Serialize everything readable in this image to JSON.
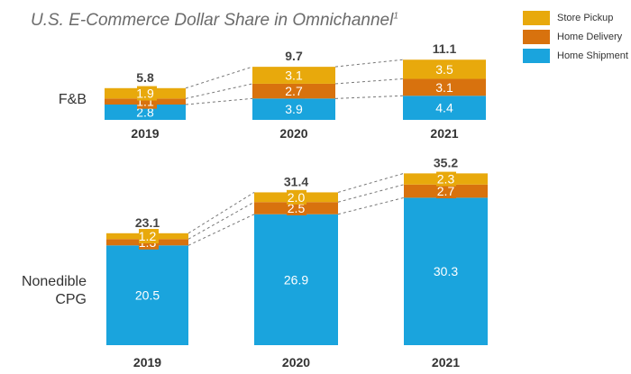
{
  "title": "U.S. E-Commerce Dollar Share in Omnichannel",
  "title_footnote": "1",
  "colors": {
    "store_pickup": "#e8a90c",
    "home_delivery": "#d8720e",
    "home_shipment": "#1aa4dd",
    "connector": "#777777",
    "text": "#333333"
  },
  "chart_data": [
    {
      "type": "bar",
      "stacked": true,
      "row_label": "F&B",
      "categories": [
        "2019",
        "2020",
        "2021"
      ],
      "series": [
        {
          "name": "Home Shipment",
          "values": [
            2.8,
            3.9,
            4.4
          ]
        },
        {
          "name": "Home Delivery",
          "values": [
            1.1,
            2.7,
            3.1
          ]
        },
        {
          "name": "Store Pickup",
          "values": [
            1.9,
            3.1,
            3.5
          ]
        }
      ],
      "totals": [
        "5.8",
        "9.7",
        "11.1"
      ],
      "legend": [
        "Store Pickup",
        "Home Delivery",
        "Home Shipment"
      ],
      "legend_position": "top-right"
    },
    {
      "type": "bar",
      "stacked": true,
      "row_label_lines": [
        "Nonedible",
        "CPG"
      ],
      "categories": [
        "2019",
        "2020",
        "2021"
      ],
      "series": [
        {
          "name": "Home Shipment",
          "values": [
            20.5,
            26.9,
            30.3
          ]
        },
        {
          "name": "Home Delivery",
          "values": [
            1.3,
            2.5,
            2.7
          ]
        },
        {
          "name": "Store Pickup",
          "values": [
            1.2,
            2.0,
            2.3
          ]
        }
      ],
      "totals": [
        "23.1",
        "31.4",
        "35.2"
      ]
    }
  ]
}
